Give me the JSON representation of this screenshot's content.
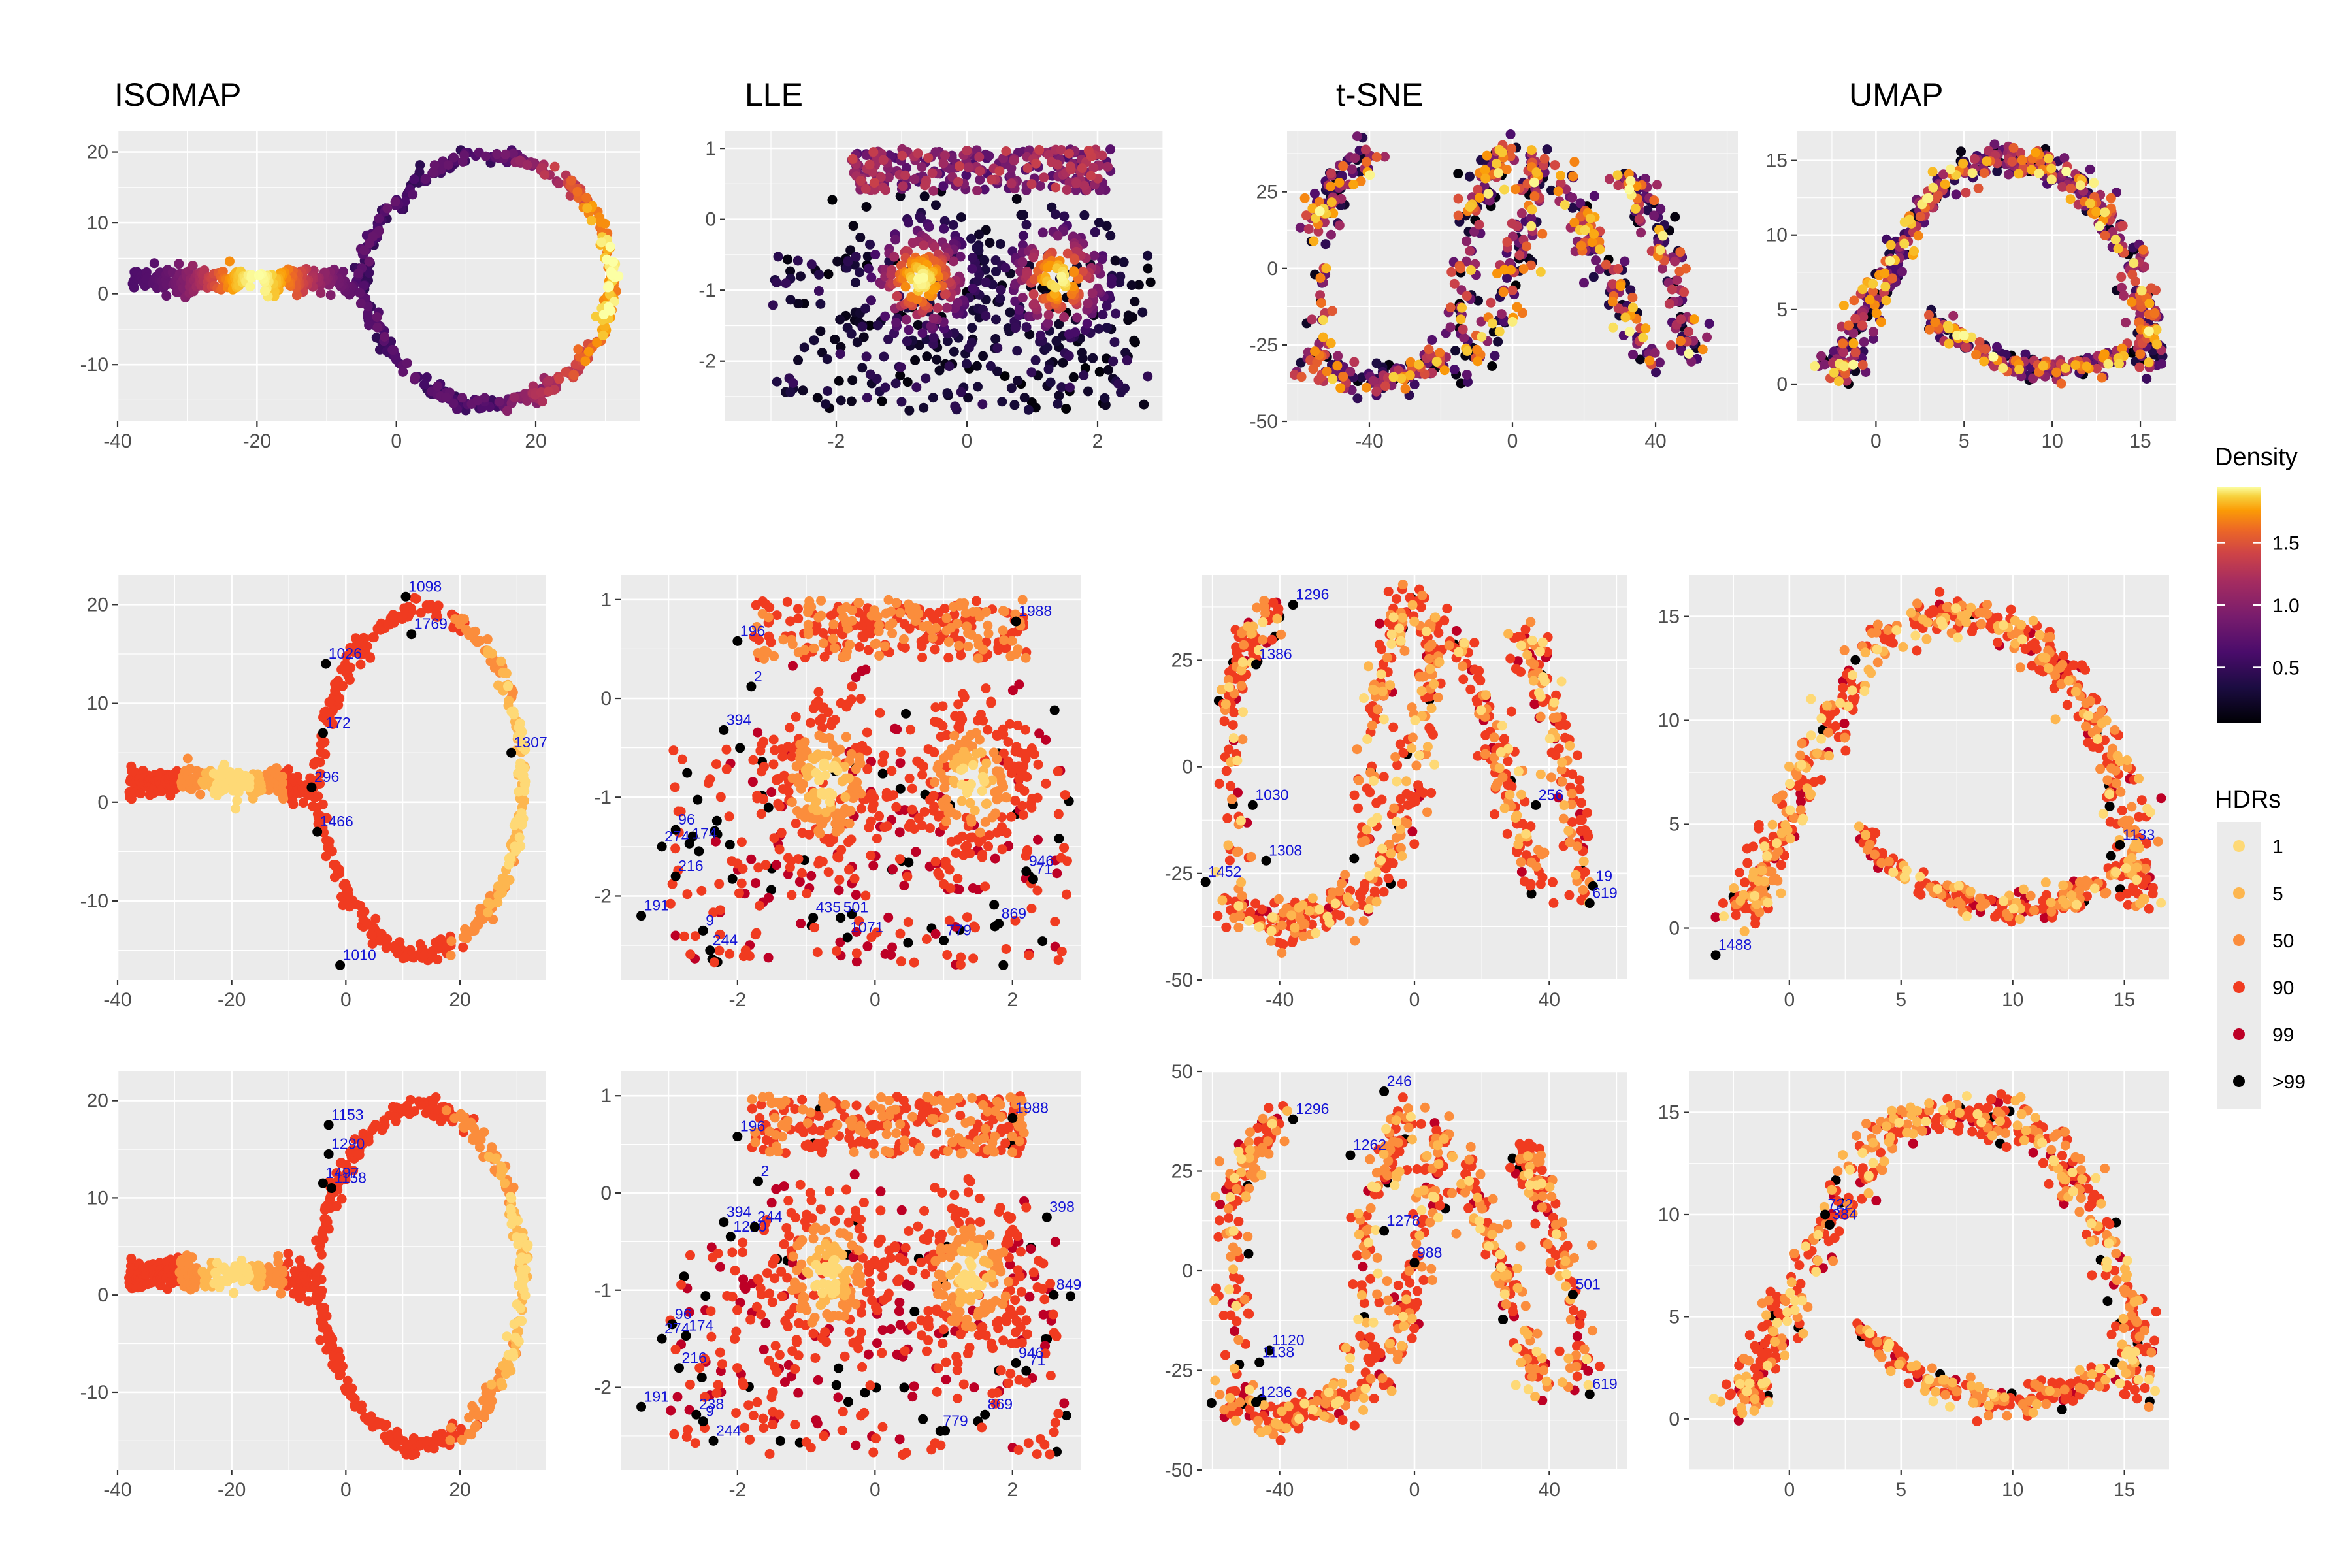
{
  "chart_data": {
    "type": "scatter",
    "methods": [
      "ISOMAP",
      "LLE",
      "t-SNE",
      "UMAP"
    ],
    "rows": [
      "density",
      "hdr_kde",
      "hdr_variable_kde"
    ],
    "axes": {
      "ISOMAP": {
        "x_ticks": [
          -40,
          -20,
          0,
          20
        ],
        "y_ticks": [
          -10,
          0,
          10,
          20
        ],
        "xlim": [
          -40,
          35
        ],
        "ylim": [
          -18,
          23
        ]
      },
      "LLE": {
        "x_ticks": [
          -2,
          0,
          2
        ],
        "y_ticks": [
          -2,
          -1,
          0,
          1
        ],
        "xlim": [
          -3.7,
          3.0
        ],
        "ylim": [
          -2.85,
          1.25
        ]
      },
      "t-SNE": {
        "x_ticks": [
          -40,
          0,
          40
        ],
        "y_ticks": [
          -50,
          -25,
          0,
          25
        ],
        "y_ticks_row3": [
          -50,
          -25,
          0,
          25,
          50
        ],
        "xlim": [
          -63,
          63
        ],
        "ylim": [
          -50,
          45
        ],
        "ylim_row3": [
          -50,
          50
        ]
      },
      "UMAP": {
        "x_ticks": [
          0,
          5,
          10,
          15
        ],
        "y_ticks": [
          0,
          5,
          10,
          15
        ],
        "xlim": [
          -4.5,
          17
        ],
        "ylim": [
          -2.5,
          17
        ]
      }
    },
    "density_legend": {
      "title": "Density",
      "ticks": [
        "0.5",
        "1.0",
        "1.5"
      ],
      "range": [
        0.05,
        1.95
      ]
    },
    "hdr_legend": {
      "title": "HDRs",
      "levels": [
        {
          "label": "1",
          "color": "#fed976"
        },
        {
          "label": "5",
          "color": "#fdb64f"
        },
        {
          "label": "50",
          "color": "#fb8d3c"
        },
        {
          "label": "90",
          "color": "#f03b20"
        },
        {
          "label": "99",
          "color": "#bd0026"
        },
        {
          "label": ">99",
          "color": "#000000"
        }
      ]
    },
    "outlier_labels": {
      "ISOMAP_row2": [
        {
          "text": "1098",
          "x": 10.5,
          "y": 20.8
        },
        {
          "text": "1769",
          "x": 11.5,
          "y": 17.0
        },
        {
          "text": "1026",
          "x": -3.5,
          "y": 14.0
        },
        {
          "text": "172",
          "x": -4,
          "y": 7.0
        },
        {
          "text": "1307",
          "x": 29,
          "y": 5.0
        },
        {
          "text": "296",
          "x": -6,
          "y": 1.5
        },
        {
          "text": "1466",
          "x": -5,
          "y": -3.0
        },
        {
          "text": "1010",
          "x": -1,
          "y": -16.5
        }
      ],
      "LLE_row2": [
        {
          "text": "1988",
          "x": 2.05,
          "y": 0.78
        },
        {
          "text": "196",
          "x": -2.0,
          "y": 0.58
        },
        {
          "text": "2",
          "x": -1.8,
          "y": 0.12
        },
        {
          "text": "394",
          "x": -2.2,
          "y": -0.32
        },
        {
          "text": "96",
          "x": -2.9,
          "y": -1.33
        },
        {
          "text": "274",
          "x": -3.1,
          "y": -1.5
        },
        {
          "text": "174",
          "x": -2.7,
          "y": -1.47
        },
        {
          "text": "216",
          "x": -2.9,
          "y": -1.8
        },
        {
          "text": "946",
          "x": 2.2,
          "y": -1.75
        },
        {
          "text": "71",
          "x": 2.3,
          "y": -1.83
        },
        {
          "text": "191",
          "x": -3.4,
          "y": -2.2
        },
        {
          "text": "9",
          "x": -2.5,
          "y": -2.35
        },
        {
          "text": "244",
          "x": -2.4,
          "y": -2.55
        },
        {
          "text": "435",
          "x": -0.9,
          "y": -2.22
        },
        {
          "text": "501",
          "x": -0.5,
          "y": -2.22
        },
        {
          "text": "1071",
          "x": -0.4,
          "y": -2.42
        },
        {
          "text": "869",
          "x": 1.8,
          "y": -2.28
        },
        {
          "text": "779",
          "x": 1.0,
          "y": -2.45
        }
      ],
      "tSNE_row2": [
        {
          "text": "1296",
          "x": -36,
          "y": 38
        },
        {
          "text": "1386",
          "x": -47,
          "y": 24
        },
        {
          "text": "1030",
          "x": -48,
          "y": -9
        },
        {
          "text": "1308",
          "x": -44,
          "y": -22
        },
        {
          "text": "1452",
          "x": -62,
          "y": -27
        },
        {
          "text": "256",
          "x": 36,
          "y": -9
        },
        {
          "text": "19",
          "x": 53,
          "y": -28
        },
        {
          "text": "619",
          "x": 52,
          "y": -32
        }
      ],
      "UMAP_row2": [
        {
          "text": "1133",
          "x": 14.8,
          "y": 4.0
        },
        {
          "text": "1488",
          "x": -3.3,
          "y": -1.3
        }
      ],
      "ISOMAP_row3": [
        {
          "text": "1153",
          "x": -3,
          "y": 17.5
        },
        {
          "text": "1290",
          "x": -3,
          "y": 14.5
        },
        {
          "text": "1497",
          "x": -4,
          "y": 11.5
        },
        {
          "text": "1158",
          "x": -2.5,
          "y": 11.0
        }
      ],
      "LLE_row3": [
        {
          "text": "1988",
          "x": 2.0,
          "y": 0.77
        },
        {
          "text": "196",
          "x": -2.0,
          "y": 0.58
        },
        {
          "text": "2",
          "x": -1.7,
          "y": 0.12
        },
        {
          "text": "394",
          "x": -2.2,
          "y": -0.3
        },
        {
          "text": "1210",
          "x": -2.1,
          "y": -0.45
        },
        {
          "text": "244",
          "x": -1.75,
          "y": -0.35
        },
        {
          "text": "398",
          "x": 2.5,
          "y": -0.25
        },
        {
          "text": "96",
          "x": -2.95,
          "y": -1.35
        },
        {
          "text": "274",
          "x": -3.1,
          "y": -1.5
        },
        {
          "text": "174",
          "x": -2.75,
          "y": -1.47
        },
        {
          "text": "216",
          "x": -2.85,
          "y": -1.8
        },
        {
          "text": "946",
          "x": 2.05,
          "y": -1.75
        },
        {
          "text": "71",
          "x": 2.2,
          "y": -1.83
        },
        {
          "text": "849",
          "x": 2.6,
          "y": -1.05
        },
        {
          "text": "191",
          "x": -3.4,
          "y": -2.2
        },
        {
          "text": "9",
          "x": -2.5,
          "y": -2.35
        },
        {
          "text": "244",
          "x": -2.35,
          "y": -2.55
        },
        {
          "text": "869",
          "x": 1.6,
          "y": -2.28
        },
        {
          "text": "779",
          "x": 0.95,
          "y": -2.45
        },
        {
          "text": "238",
          "x": -2.6,
          "y": -2.28
        }
      ],
      "tSNE_row3": [
        {
          "text": "1296",
          "x": -36,
          "y": 38
        },
        {
          "text": "246",
          "x": -9,
          "y": 45
        },
        {
          "text": "1262",
          "x": -19,
          "y": 29
        },
        {
          "text": "1278",
          "x": -9,
          "y": 10
        },
        {
          "text": "988",
          "x": 0,
          "y": 2
        },
        {
          "text": "501",
          "x": 47,
          "y": -6
        },
        {
          "text": "1120",
          "x": -43,
          "y": -20
        },
        {
          "text": "1138",
          "x": -46,
          "y": -23
        },
        {
          "text": "1236",
          "x": -47,
          "y": -33
        },
        {
          "text": "619",
          "x": 52,
          "y": -31
        }
      ],
      "UMAP_row3": [
        {
          "text": "722",
          "x": 1.6,
          "y": 10.0
        },
        {
          "text": "384",
          "x": 1.8,
          "y": 9.5
        }
      ]
    }
  }
}
